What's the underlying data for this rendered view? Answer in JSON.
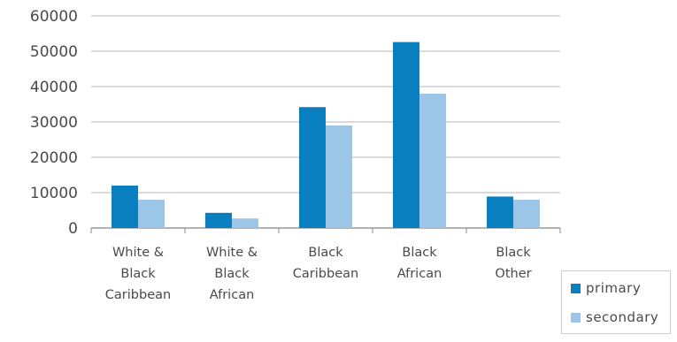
{
  "chart_data": {
    "type": "bar",
    "categories": [
      [
        "White &",
        "Black",
        "Caribbean"
      ],
      [
        "White &",
        "Black",
        "African"
      ],
      [
        "Black",
        "Caribbean"
      ],
      [
        "Black",
        "African"
      ],
      [
        "Black",
        "Other"
      ]
    ],
    "series": [
      {
        "name": "primary",
        "color": "#0a7fc0",
        "values": [
          12000,
          4300,
          34200,
          52600,
          8900
        ]
      },
      {
        "name": "secondary",
        "color": "#9cc6e8",
        "values": [
          8000,
          2700,
          29000,
          38000,
          8000
        ]
      }
    ],
    "yticks": [
      "0",
      "10000",
      "20000",
      "30000",
      "40000",
      "50000",
      "60000"
    ],
    "ylim": [
      0,
      60000
    ],
    "grid": true,
    "legend_position": "bottom-right"
  }
}
